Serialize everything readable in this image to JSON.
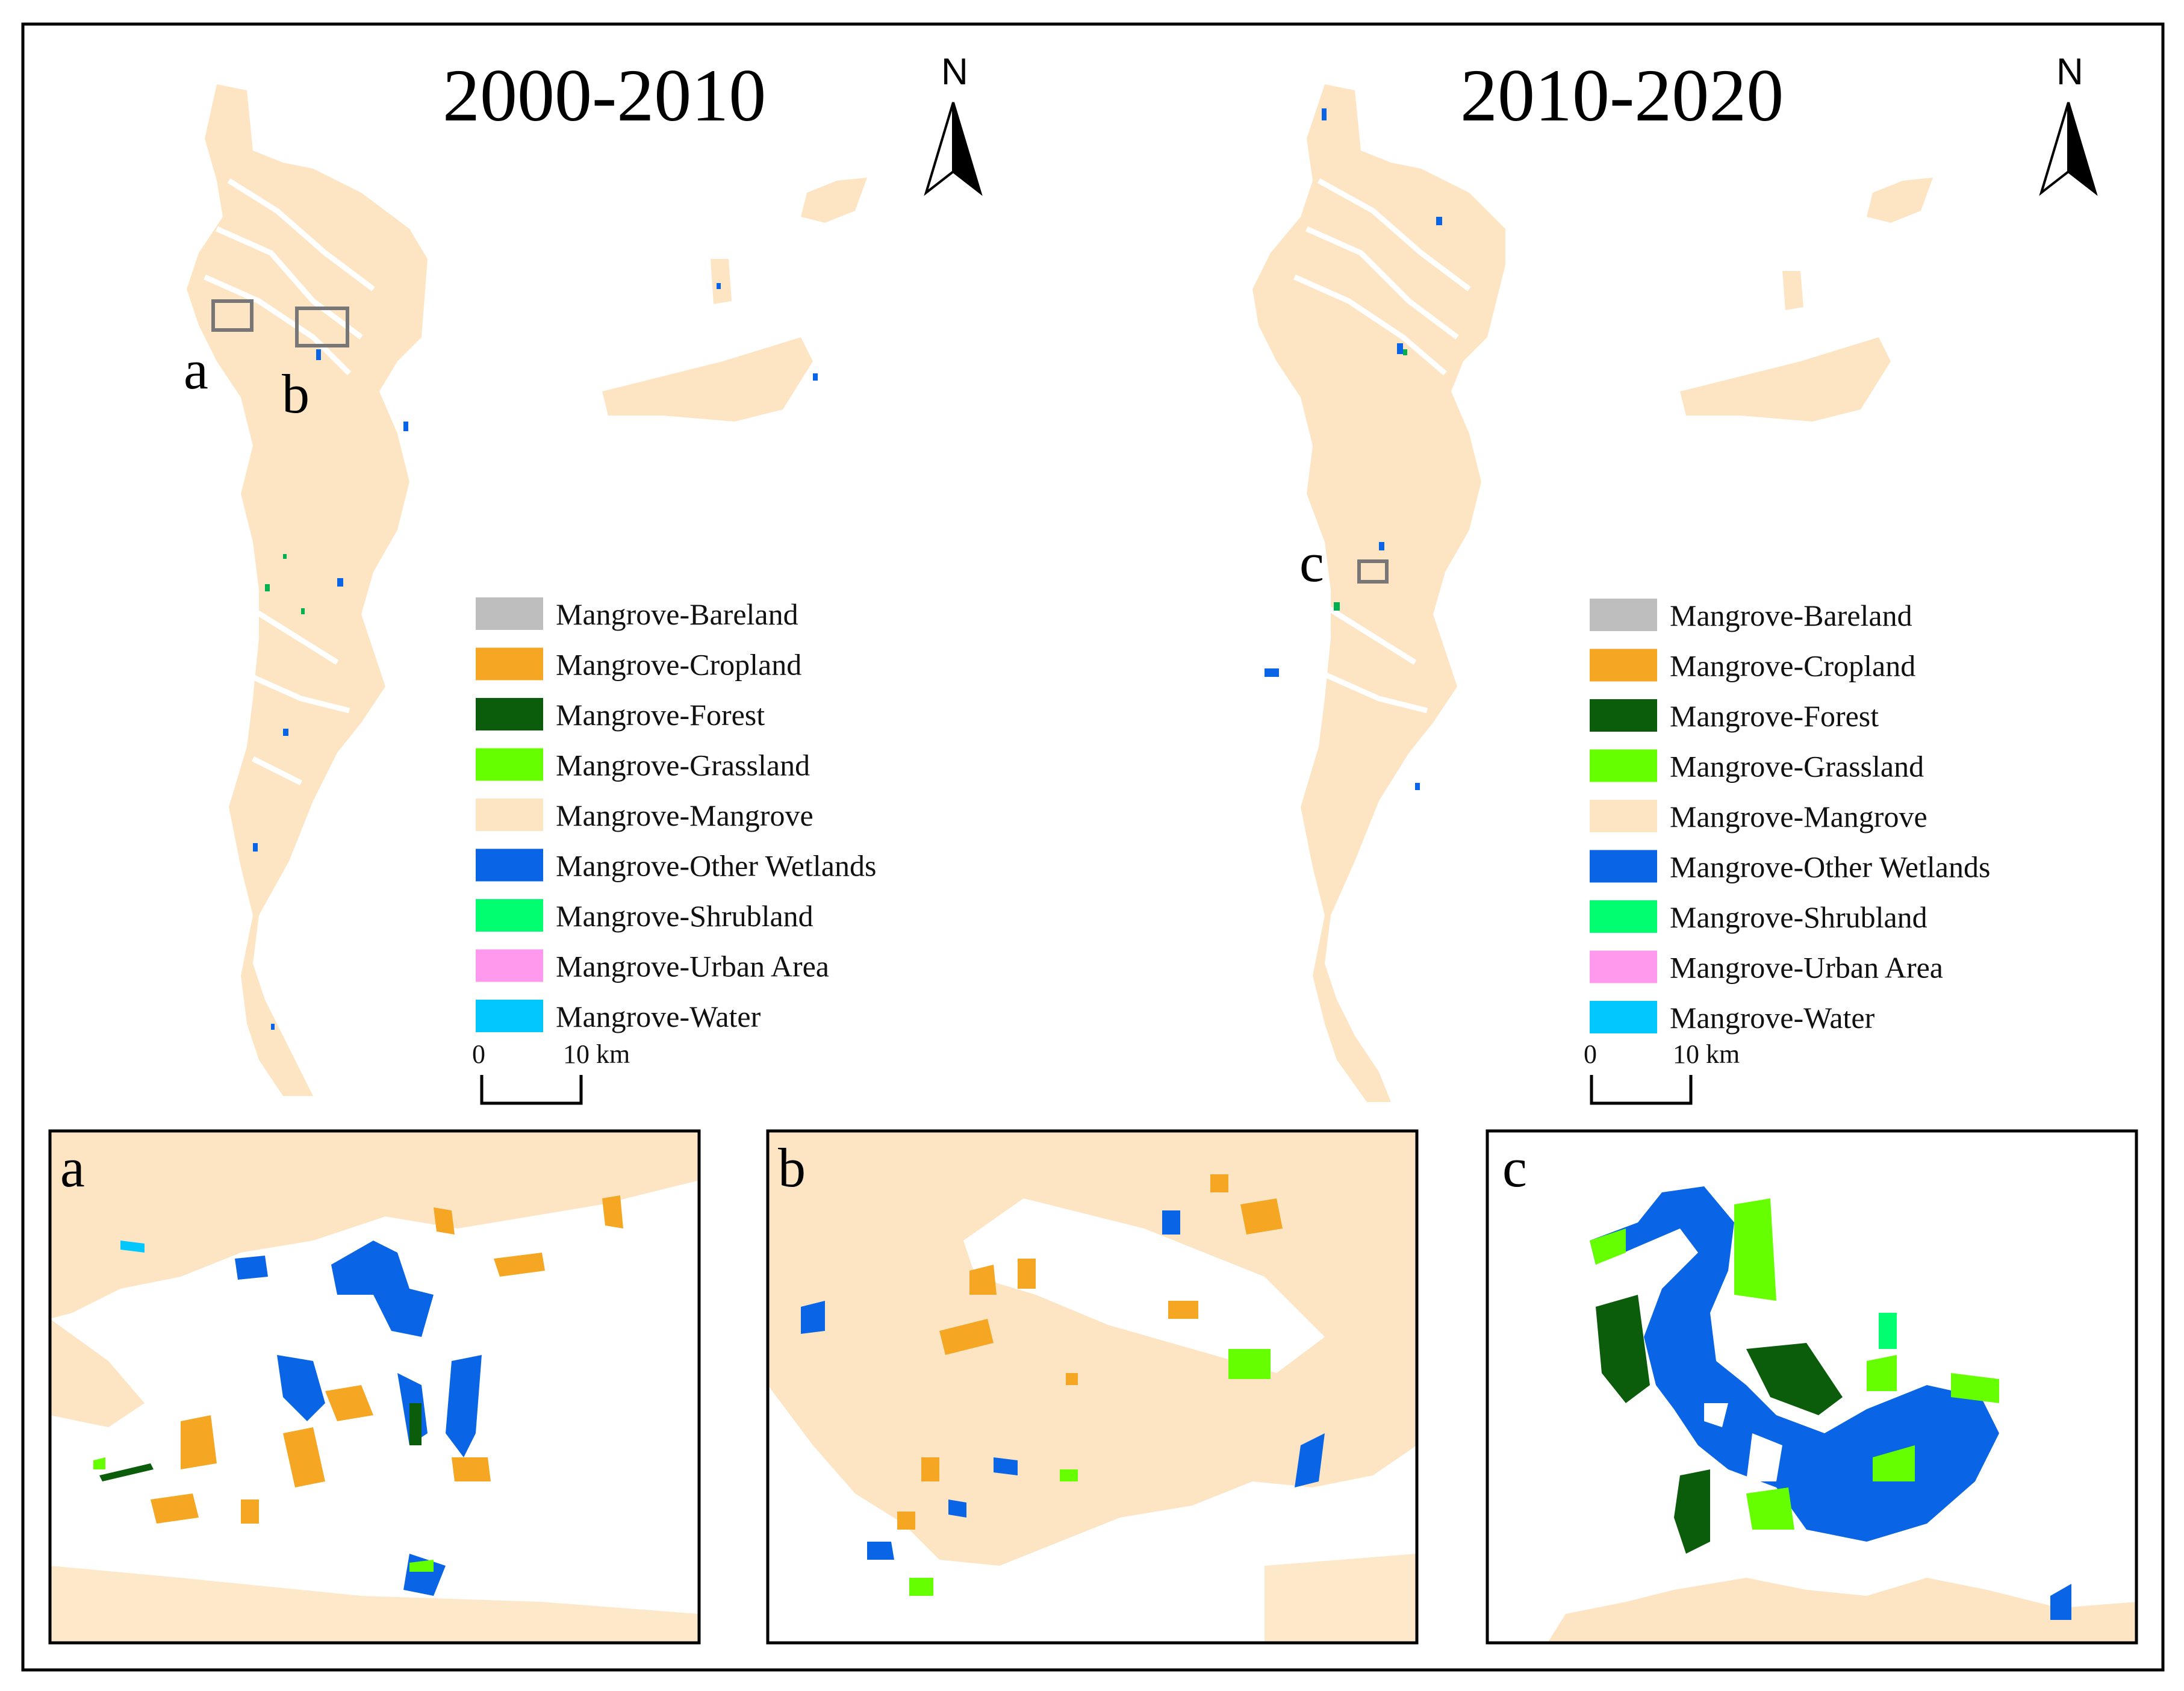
{
  "panels": [
    {
      "id": "left",
      "title": "2000-2010",
      "north": "N",
      "box_labels": [
        "a",
        "b"
      ],
      "scale": {
        "start": "0",
        "end": "10 km"
      }
    },
    {
      "id": "right",
      "title": "2010-2020",
      "north": "N",
      "box_labels": [
        "c"
      ],
      "scale": {
        "start": "0",
        "end": "10 km"
      }
    }
  ],
  "legend": [
    {
      "label": "Mangrove-Bareland",
      "color": "#bebebe"
    },
    {
      "label": "Mangrove-Cropland",
      "color": "#f5a623"
    },
    {
      "label": "Mangrove-Forest",
      "color": "#0b5d0b"
    },
    {
      "label": "Mangrove-Grassland",
      "color": "#66ff00"
    },
    {
      "label": "Mangrove-Mangrove",
      "color": "#fde5c4"
    },
    {
      "label": "Mangrove-Other Wetlands",
      "color": "#0a64e6"
    },
    {
      "label": "Mangrove-Shrubland",
      "color": "#00ff70"
    },
    {
      "label": "Mangrove-Urban Area",
      "color": "#ff99ee"
    },
    {
      "label": "Mangrove-Water",
      "color": "#00c8ff"
    }
  ],
  "insets": [
    {
      "id": "a",
      "label": "a"
    },
    {
      "id": "b",
      "label": "b"
    },
    {
      "id": "c",
      "label": "c"
    }
  ]
}
